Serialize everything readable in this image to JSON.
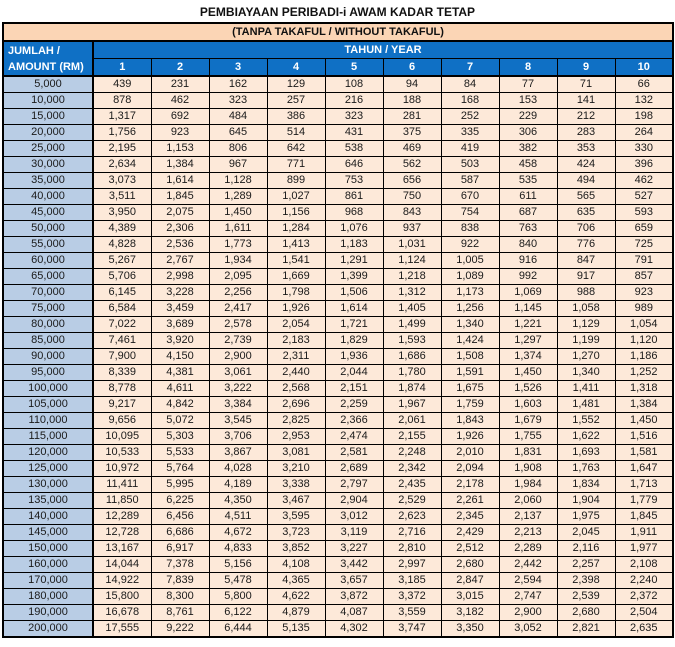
{
  "title": "PEMBIAYAAN PERIBADI-i AWAM KADAR TETAP",
  "subtitle": "(TANPA TAKAFUL / WITHOUT TAKAFUL)",
  "colors": {
    "header_blue": "#0F70C5",
    "header_text": "#FFFFFF",
    "amount_column_bg": "#B9CDE5",
    "value_cell_bg": "#FDE9D9",
    "subtitle_bg": "#FBD5B5",
    "border": "#000000"
  },
  "table": {
    "corner_header_line1": "JUMLAH /",
    "corner_header_line2": "AMOUNT (RM)",
    "group_header": "TAHUN / YEAR",
    "year_columns": [
      "1",
      "2",
      "3",
      "4",
      "5",
      "6",
      "7",
      "8",
      "9",
      "10"
    ],
    "rows": [
      {
        "amount": "5,000",
        "values": [
          "439",
          "231",
          "162",
          "129",
          "108",
          "94",
          "84",
          "77",
          "71",
          "66"
        ]
      },
      {
        "amount": "10,000",
        "values": [
          "878",
          "462",
          "323",
          "257",
          "216",
          "188",
          "168",
          "153",
          "141",
          "132"
        ]
      },
      {
        "amount": "15,000",
        "values": [
          "1,317",
          "692",
          "484",
          "386",
          "323",
          "281",
          "252",
          "229",
          "212",
          "198"
        ]
      },
      {
        "amount": "20,000",
        "values": [
          "1,756",
          "923",
          "645",
          "514",
          "431",
          "375",
          "335",
          "306",
          "283",
          "264"
        ]
      },
      {
        "amount": "25,000",
        "values": [
          "2,195",
          "1,153",
          "806",
          "642",
          "538",
          "469",
          "419",
          "382",
          "353",
          "330"
        ]
      },
      {
        "amount": "30,000",
        "values": [
          "2,634",
          "1,384",
          "967",
          "771",
          "646",
          "562",
          "503",
          "458",
          "424",
          "396"
        ]
      },
      {
        "amount": "35,000",
        "values": [
          "3,073",
          "1,614",
          "1,128",
          "899",
          "753",
          "656",
          "587",
          "535",
          "494",
          "462"
        ]
      },
      {
        "amount": "40,000",
        "values": [
          "3,511",
          "1,845",
          "1,289",
          "1,027",
          "861",
          "750",
          "670",
          "611",
          "565",
          "527"
        ]
      },
      {
        "amount": "45,000",
        "values": [
          "3,950",
          "2,075",
          "1,450",
          "1,156",
          "968",
          "843",
          "754",
          "687",
          "635",
          "593"
        ]
      },
      {
        "amount": "50,000",
        "values": [
          "4,389",
          "2,306",
          "1,611",
          "1,284",
          "1,076",
          "937",
          "838",
          "763",
          "706",
          "659"
        ]
      },
      {
        "amount": "55,000",
        "values": [
          "4,828",
          "2,536",
          "1,773",
          "1,413",
          "1,183",
          "1,031",
          "922",
          "840",
          "776",
          "725"
        ]
      },
      {
        "amount": "60,000",
        "values": [
          "5,267",
          "2,767",
          "1,934",
          "1,541",
          "1,291",
          "1,124",
          "1,005",
          "916",
          "847",
          "791"
        ]
      },
      {
        "amount": "65,000",
        "values": [
          "5,706",
          "2,998",
          "2,095",
          "1,669",
          "1,399",
          "1,218",
          "1,089",
          "992",
          "917",
          "857"
        ]
      },
      {
        "amount": "70,000",
        "values": [
          "6,145",
          "3,228",
          "2,256",
          "1,798",
          "1,506",
          "1,312",
          "1,173",
          "1,069",
          "988",
          "923"
        ]
      },
      {
        "amount": "75,000",
        "values": [
          "6,584",
          "3,459",
          "2,417",
          "1,926",
          "1,614",
          "1,405",
          "1,256",
          "1,145",
          "1,058",
          "989"
        ]
      },
      {
        "amount": "80,000",
        "values": [
          "7,022",
          "3,689",
          "2,578",
          "2,054",
          "1,721",
          "1,499",
          "1,340",
          "1,221",
          "1,129",
          "1,054"
        ]
      },
      {
        "amount": "85,000",
        "values": [
          "7,461",
          "3,920",
          "2,739",
          "2,183",
          "1,829",
          "1,593",
          "1,424",
          "1,297",
          "1,199",
          "1,120"
        ]
      },
      {
        "amount": "90,000",
        "values": [
          "7,900",
          "4,150",
          "2,900",
          "2,311",
          "1,936",
          "1,686",
          "1,508",
          "1,374",
          "1,270",
          "1,186"
        ]
      },
      {
        "amount": "95,000",
        "values": [
          "8,339",
          "4,381",
          "3,061",
          "2,440",
          "2,044",
          "1,780",
          "1,591",
          "1,450",
          "1,340",
          "1,252"
        ]
      },
      {
        "amount": "100,000",
        "values": [
          "8,778",
          "4,611",
          "3,222",
          "2,568",
          "2,151",
          "1,874",
          "1,675",
          "1,526",
          "1,411",
          "1,318"
        ]
      },
      {
        "amount": "105,000",
        "values": [
          "9,217",
          "4,842",
          "3,384",
          "2,696",
          "2,259",
          "1,967",
          "1,759",
          "1,603",
          "1,481",
          "1,384"
        ]
      },
      {
        "amount": "110,000",
        "values": [
          "9,656",
          "5,072",
          "3,545",
          "2,825",
          "2,366",
          "2,061",
          "1,843",
          "1,679",
          "1,552",
          "1,450"
        ]
      },
      {
        "amount": "115,000",
        "values": [
          "10,095",
          "5,303",
          "3,706",
          "2,953",
          "2,474",
          "2,155",
          "1,926",
          "1,755",
          "1,622",
          "1,516"
        ]
      },
      {
        "amount": "120,000",
        "values": [
          "10,533",
          "5,533",
          "3,867",
          "3,081",
          "2,581",
          "2,248",
          "2,010",
          "1,831",
          "1,693",
          "1,581"
        ]
      },
      {
        "amount": "125,000",
        "values": [
          "10,972",
          "5,764",
          "4,028",
          "3,210",
          "2,689",
          "2,342",
          "2,094",
          "1,908",
          "1,763",
          "1,647"
        ]
      },
      {
        "amount": "130,000",
        "values": [
          "11,411",
          "5,995",
          "4,189",
          "3,338",
          "2,797",
          "2,435",
          "2,178",
          "1,984",
          "1,834",
          "1,713"
        ]
      },
      {
        "amount": "135,000",
        "values": [
          "11,850",
          "6,225",
          "4,350",
          "3,467",
          "2,904",
          "2,529",
          "2,261",
          "2,060",
          "1,904",
          "1,779"
        ]
      },
      {
        "amount": "140,000",
        "values": [
          "12,289",
          "6,456",
          "4,511",
          "3,595",
          "3,012",
          "2,623",
          "2,345",
          "2,137",
          "1,975",
          "1,845"
        ]
      },
      {
        "amount": "145,000",
        "values": [
          "12,728",
          "6,686",
          "4,672",
          "3,723",
          "3,119",
          "2,716",
          "2,429",
          "2,213",
          "2,045",
          "1,911"
        ]
      },
      {
        "amount": "150,000",
        "values": [
          "13,167",
          "6,917",
          "4,833",
          "3,852",
          "3,227",
          "2,810",
          "2,512",
          "2,289",
          "2,116",
          "1,977"
        ]
      },
      {
        "amount": "160,000",
        "values": [
          "14,044",
          "7,378",
          "5,156",
          "4,108",
          "3,442",
          "2,997",
          "2,680",
          "2,442",
          "2,257",
          "2,108"
        ]
      },
      {
        "amount": "170,000",
        "values": [
          "14,922",
          "7,839",
          "5,478",
          "4,365",
          "3,657",
          "3,185",
          "2,847",
          "2,594",
          "2,398",
          "2,240"
        ]
      },
      {
        "amount": "180,000",
        "values": [
          "15,800",
          "8,300",
          "5,800",
          "4,622",
          "3,872",
          "3,372",
          "3,015",
          "2,747",
          "2,539",
          "2,372"
        ]
      },
      {
        "amount": "190,000",
        "values": [
          "16,678",
          "8,761",
          "6,122",
          "4,879",
          "4,087",
          "3,559",
          "3,182",
          "2,900",
          "2,680",
          "2,504"
        ]
      },
      {
        "amount": "200,000",
        "values": [
          "17,555",
          "9,222",
          "6,444",
          "5,135",
          "4,302",
          "3,747",
          "3,350",
          "3,052",
          "2,821",
          "2,635"
        ]
      }
    ]
  }
}
